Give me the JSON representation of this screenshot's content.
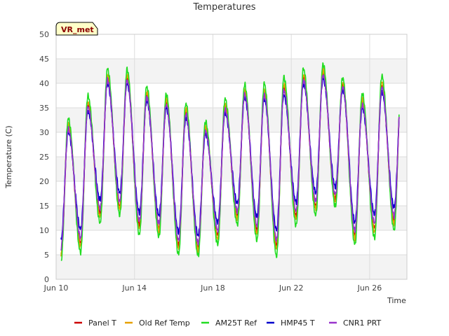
{
  "chart_data": {
    "type": "line",
    "title": "Temperatures",
    "xlabel": "Time",
    "ylabel": "Temperature (C)",
    "badge": "VR_met",
    "xlim": [
      10.0,
      27.9
    ],
    "ylim": [
      0,
      50
    ],
    "yticks": [
      0,
      5,
      10,
      15,
      20,
      25,
      30,
      35,
      40,
      45,
      50
    ],
    "xticks": [
      {
        "day": 10,
        "label": "Jun 10"
      },
      {
        "day": 14,
        "label": "Jun 14"
      },
      {
        "day": 18,
        "label": "Jun 18"
      },
      {
        "day": 22,
        "label": "Jun 22"
      },
      {
        "day": 26,
        "label": "Jun 26"
      }
    ],
    "grid": true,
    "legend_position": "bottom",
    "x_start_day": 10.25,
    "x_end_day": 27.5,
    "daily_extremes": [
      {
        "day": 10,
        "min": 5.5,
        "max": 31
      },
      {
        "day": 11,
        "min": 7.5,
        "max": 35.5
      },
      {
        "day": 12,
        "min": 13.5,
        "max": 41
      },
      {
        "day": 13,
        "min": 15,
        "max": 41
      },
      {
        "day": 14,
        "min": 11,
        "max": 37.5
      },
      {
        "day": 15,
        "min": 10.5,
        "max": 36
      },
      {
        "day": 16,
        "min": 7,
        "max": 34
      },
      {
        "day": 17,
        "min": 6.5,
        "max": 30.5
      },
      {
        "day": 18,
        "min": 9,
        "max": 35
      },
      {
        "day": 19,
        "min": 13,
        "max": 38
      },
      {
        "day": 20,
        "min": 10,
        "max": 38
      },
      {
        "day": 21,
        "min": 7,
        "max": 39
      },
      {
        "day": 22,
        "min": 13,
        "max": 41
      },
      {
        "day": 23,
        "min": 15,
        "max": 42
      },
      {
        "day": 24,
        "min": 16.5,
        "max": 39.5
      },
      {
        "day": 25,
        "min": 9,
        "max": 36
      },
      {
        "day": 26,
        "min": 10.5,
        "max": 39.5
      },
      {
        "day": 27,
        "min": 12,
        "max": 39.5
      }
    ],
    "series": [
      {
        "name": "Panel T",
        "color": "#cc0000",
        "amp": 1.0,
        "offset": 0.0
      },
      {
        "name": "Old Ref Temp",
        "color": "#e6a000",
        "amp": 1.05,
        "offset": 0.0
      },
      {
        "name": "AM25T Ref",
        "color": "#22dd22",
        "amp": 1.14,
        "offset": 0.0
      },
      {
        "name": "HMP45 T",
        "color": "#0000cc",
        "amp": 0.86,
        "offset": 0.8
      },
      {
        "name": "CNR1 PRT",
        "color": "#9933cc",
        "amp": 0.95,
        "offset": 0.3
      }
    ]
  }
}
